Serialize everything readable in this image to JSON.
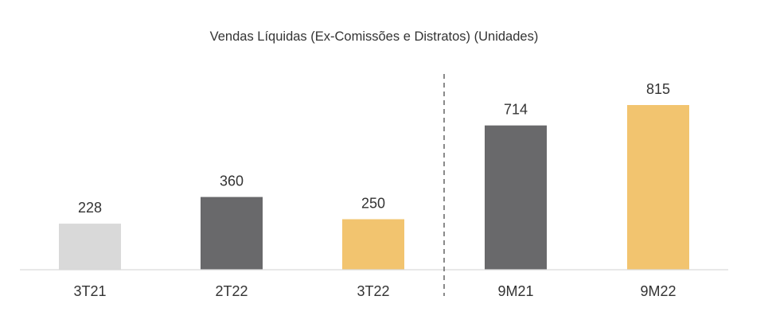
{
  "chart_data": {
    "type": "bar",
    "title": "Vendas Líquidas (Ex-Comissões e Distratos) (Unidades)",
    "xlabel": "",
    "ylabel": "",
    "ylim": [
      0,
      900
    ],
    "grid": false,
    "legend": "none",
    "categories": [
      "3T21",
      "2T22",
      "3T22",
      "9M21",
      "9M22"
    ],
    "values": [
      228,
      360,
      250,
      714,
      815
    ],
    "bar_colors": [
      "#d9d9d9",
      "#69696b",
      "#f2c46f",
      "#69696b",
      "#f2c46f"
    ],
    "divider": {
      "style": "dashed",
      "between": [
        "3T22",
        "9M21"
      ]
    }
  }
}
